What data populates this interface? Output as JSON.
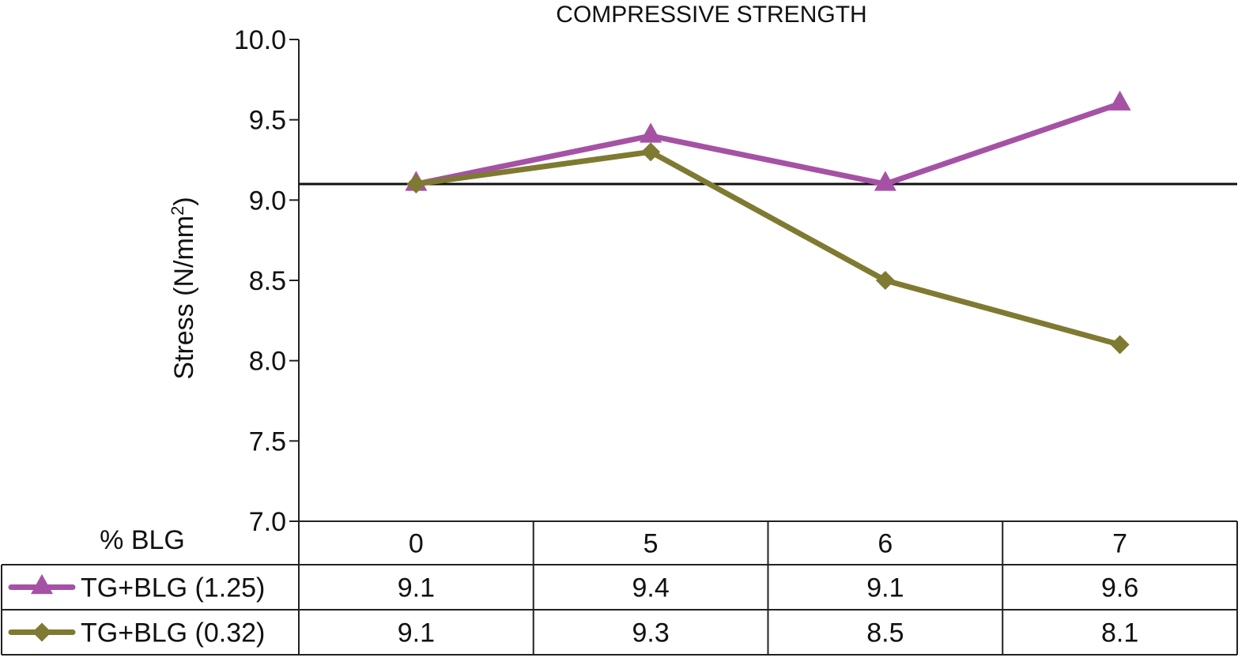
{
  "chart_data": {
    "type": "line",
    "title": "COMPRESSIVE STRENGTH",
    "xlabel": "% BLG",
    "ylabel": "Stress (N/mm²)",
    "ylabel_main": "Stress (N/mm",
    "ylabel_sup": "2",
    "ylabel_close": ")",
    "categories": [
      "0",
      "5",
      "6",
      "7"
    ],
    "ylim": [
      7.0,
      10.0
    ],
    "yticks": [
      "7.0",
      "7.5",
      "8.0",
      "8.5",
      "9.0",
      "9.5",
      "10.0"
    ],
    "reference_line": 9.1,
    "grid": false,
    "legend": "data table below plot",
    "series": [
      {
        "name": "TG+BLG (1.25)",
        "values": [
          9.1,
          9.4,
          9.1,
          9.6
        ],
        "labels": [
          "9.1",
          "9.4",
          "9.1",
          "9.6"
        ],
        "color": "#a552a5",
        "marker": "triangle"
      },
      {
        "name": "TG+BLG (0.32)",
        "values": [
          9.1,
          9.3,
          8.5,
          8.1
        ],
        "labels": [
          "9.1",
          "9.3",
          "8.5",
          "8.1"
        ],
        "color": "#7f7a31",
        "marker": "diamond"
      }
    ]
  }
}
